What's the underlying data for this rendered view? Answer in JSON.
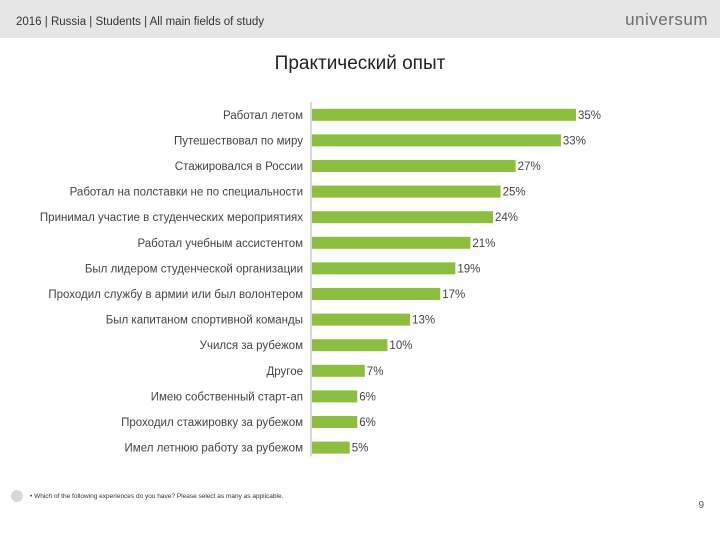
{
  "header": {
    "text": "2016 | Russia | Students | All main fields of study",
    "logo": "universum"
  },
  "footnote": {
    "bullet": "•",
    "text": "Which of the following experiences do you have? Please select as many as applicable."
  },
  "page_number": "9",
  "chart_data": {
    "type": "bar",
    "orientation": "horizontal",
    "title": "Практический опыт",
    "categories": [
      "Работал летом",
      "Путешествовал по миру",
      "Стажировался в России",
      "Работал на полставки не по специальности",
      "Принимал участие в студенческих мероприятиях",
      "Работал учебным ассистентом",
      "Был лидером студенческой организации",
      "Проходил службу в армии или был волонтером",
      "Был капитаном спортивной команды",
      "Учился за рубежом",
      "Другое",
      "Имею собственный старт-ап",
      "Проходил стажировку за рубежом",
      "Имел летнюю работу за рубежом"
    ],
    "values": [
      35,
      33,
      27,
      25,
      24,
      21,
      19,
      17,
      13,
      10,
      7,
      6,
      6,
      5
    ],
    "value_labels": [
      "35%",
      "33%",
      "27%",
      "25%",
      "24%",
      "21%",
      "19%",
      "17%",
      "13%",
      "10%",
      "7%",
      "6%",
      "6%",
      "5%"
    ],
    "value_suffix": "%",
    "xlim": [
      0,
      35
    ],
    "grid": false,
    "legend": "none",
    "bar_color": "#8cbf3f"
  }
}
